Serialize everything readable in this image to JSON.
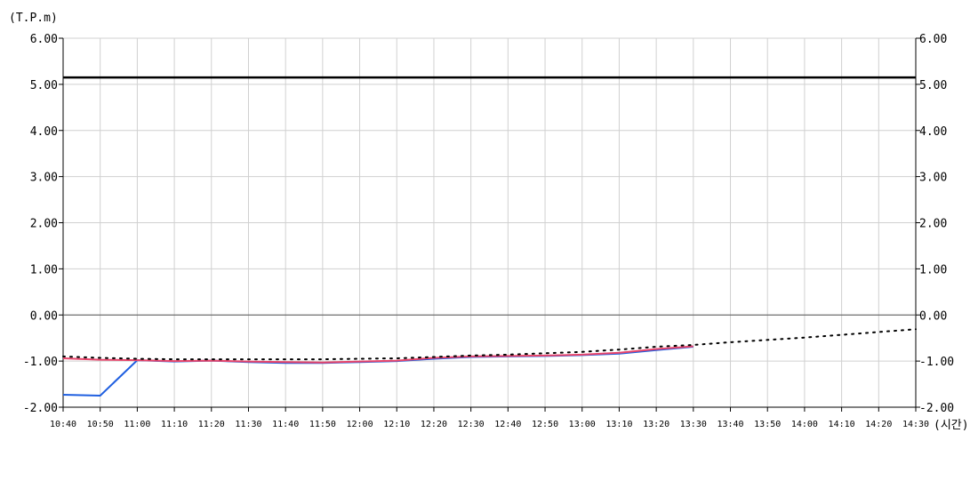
{
  "chart_data": {
    "type": "line",
    "y_unit_label": "(T.P.m)",
    "x_unit_label": "(시간)",
    "ylim": [
      -2,
      6
    ],
    "y_ticks": [
      "6.00",
      "5.00",
      "4.00",
      "3.00",
      "2.00",
      "1.00",
      "0.00",
      "-1.00",
      "-2.00"
    ],
    "y_tick_values": [
      6,
      5,
      4,
      3,
      2,
      1,
      0,
      -1,
      -2
    ],
    "x_ticks": [
      "10:40",
      "10:50",
      "11:00",
      "11:10",
      "11:20",
      "11:30",
      "11:40",
      "11:50",
      "12:00",
      "12:10",
      "12:20",
      "12:30",
      "12:40",
      "12:50",
      "13:00",
      "13:10",
      "13:20",
      "13:30",
      "13:40",
      "13:50",
      "14:00",
      "14:10",
      "14:20",
      "14:30"
    ],
    "grid": true,
    "reference_line": {
      "value": 5.15,
      "color": "#000000"
    },
    "zero_line": {
      "value": 0,
      "color": "#555555"
    },
    "series": [
      {
        "color": "#1f5fe0",
        "style": "solid",
        "x": [
          "10:40",
          "10:50",
          "11:00",
          "11:10",
          "11:20",
          "11:30",
          "11:40",
          "11:50",
          "12:00",
          "12:10",
          "12:20",
          "12:30",
          "12:40",
          "12:50",
          "13:00",
          "13:10",
          "13:20",
          "13:30"
        ],
        "values": [
          -1.73,
          -1.75,
          -0.98,
          -1.01,
          -0.99,
          -1.02,
          -1.04,
          -1.04,
          -1.02,
          -1.0,
          -0.95,
          -0.91,
          -0.9,
          -0.89,
          -0.87,
          -0.84,
          -0.76,
          -0.69
        ]
      },
      {
        "color": "#e8456b",
        "style": "solid",
        "x": [
          "10:40",
          "10:50",
          "11:00",
          "11:10",
          "11:20",
          "11:30",
          "11:40",
          "11:50",
          "12:00",
          "12:10",
          "12:20",
          "12:30",
          "12:40",
          "12:50",
          "13:00",
          "13:10",
          "13:20",
          "13:30"
        ],
        "values": [
          -0.94,
          -0.97,
          -0.98,
          -1.0,
          -0.99,
          -1.01,
          -1.02,
          -1.03,
          -1.01,
          -0.99,
          -0.93,
          -0.9,
          -0.89,
          -0.88,
          -0.86,
          -0.82,
          -0.74,
          -0.68
        ]
      },
      {
        "color": "#000000",
        "style": "dotted",
        "x": [
          "10:40",
          "10:50",
          "11:00",
          "11:10",
          "11:20",
          "11:30",
          "11:40",
          "11:50",
          "12:00",
          "12:10",
          "12:20",
          "12:30",
          "12:40",
          "12:50",
          "13:00",
          "13:10",
          "13:20",
          "13:30",
          "13:40",
          "13:50",
          "14:00",
          "14:10",
          "14:20",
          "14:30"
        ],
        "values": [
          -0.9,
          -0.93,
          -0.95,
          -0.96,
          -0.96,
          -0.96,
          -0.96,
          -0.96,
          -0.95,
          -0.94,
          -0.91,
          -0.88,
          -0.86,
          -0.83,
          -0.8,
          -0.75,
          -0.69,
          -0.65,
          -0.59,
          -0.54,
          -0.49,
          -0.43,
          -0.37,
          -0.31
        ]
      }
    ]
  }
}
